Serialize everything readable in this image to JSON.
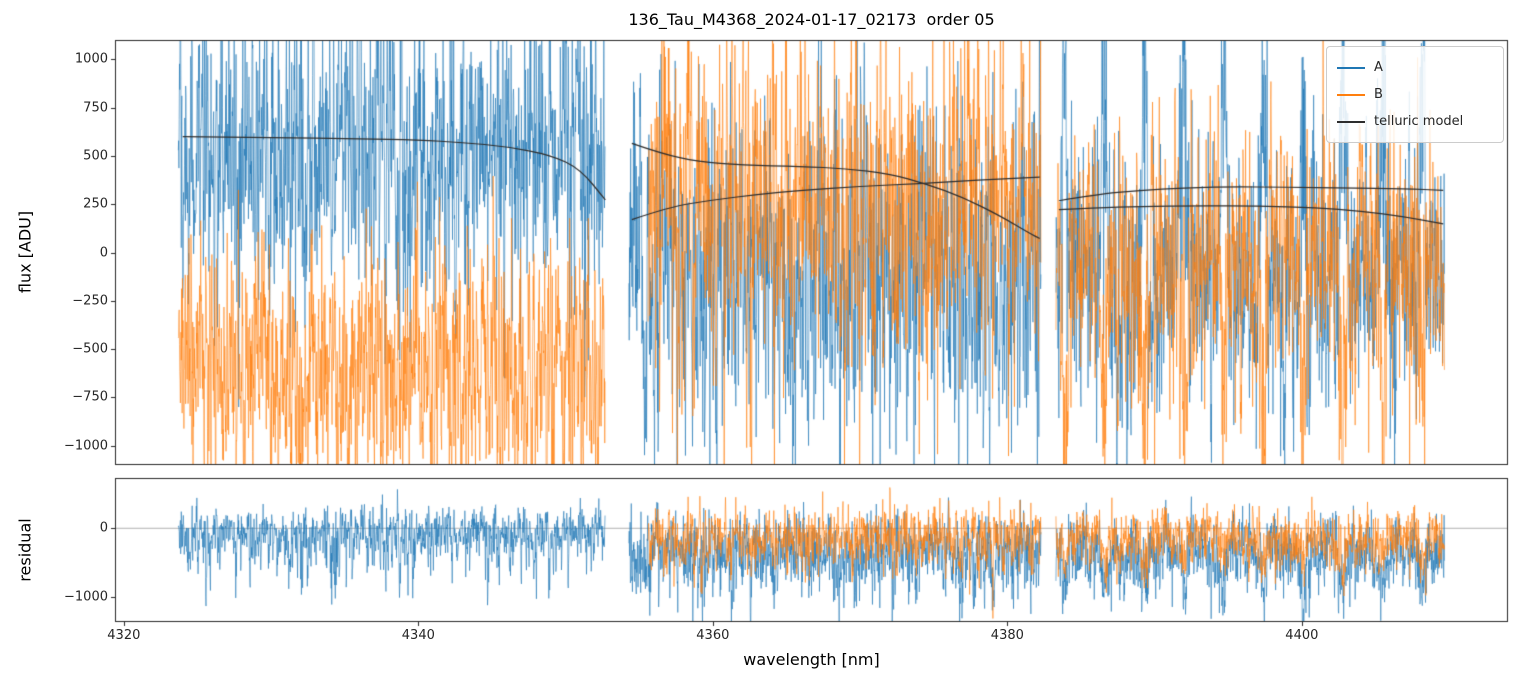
{
  "chart_data": {
    "type": "line",
    "title": "136_Tau_M4368_2024-01-17_02173  order 05",
    "xlabel": "wavelength [nm]",
    "x_axis": {
      "lim": [
        4319.4,
        4414.0
      ],
      "ticks": [
        4320,
        4340,
        4360,
        4380,
        4400
      ],
      "tick_labels": [
        "4320",
        "4340",
        "4360",
        "4380",
        "4400"
      ]
    },
    "panels": {
      "flux": {
        "ylabel": "flux [ADU]",
        "ylim": [
          -1100,
          1100
        ],
        "yticks": [
          1000,
          750,
          500,
          250,
          0,
          -250,
          -500,
          -750,
          -1000
        ],
        "ytick_labels": [
          "1000",
          "750",
          "500",
          "250",
          "0",
          "−250",
          "−500",
          "−750",
          "−1000"
        ]
      },
      "residual": {
        "ylabel": "residual",
        "ylim": [
          -1360,
          730
        ],
        "yticks": [
          0,
          -1000
        ],
        "ytick_labels": [
          "0",
          "−1000"
        ]
      }
    },
    "legend": {
      "position": "upper right",
      "entries": [
        {
          "label": "A",
          "color": "#1f77b4"
        },
        {
          "label": "B",
          "color": "#ff7f0e"
        },
        {
          "label": "telluric model",
          "color": "#2d2d2d"
        }
      ]
    },
    "colors": {
      "series_a": "#1f77b4",
      "series_b": "#ff7f0e",
      "telluric": "#2d2d2d",
      "spine": "#262626",
      "zero_line": "#b0b0b0"
    },
    "segments": [
      {
        "x0": 4323.7,
        "x1": 4352.7
      },
      {
        "x0": 4354.3,
        "x1": 4382.3
      },
      {
        "x0": 4383.3,
        "x1": 4409.7
      }
    ],
    "telluric_model": [
      {
        "segment": 0,
        "points": [
          [
            4324,
            600
          ],
          [
            4330,
            596
          ],
          [
            4336,
            589
          ],
          [
            4340,
            582
          ],
          [
            4343,
            570
          ],
          [
            4346,
            548
          ],
          [
            4349,
            505
          ],
          [
            4351,
            432
          ],
          [
            4352.7,
            272
          ]
        ]
      },
      {
        "segment": 1,
        "points": [
          [
            4354.5,
            565
          ],
          [
            4356.5,
            512
          ],
          [
            4359,
            470
          ],
          [
            4362,
            452
          ],
          [
            4366,
            445
          ],
          [
            4369,
            435
          ],
          [
            4372,
            408
          ],
          [
            4374.5,
            355
          ],
          [
            4377,
            285
          ],
          [
            4379.5,
            190
          ],
          [
            4381.5,
            100
          ],
          [
            4382.2,
            72
          ]
        ]
      },
      {
        "segment": 1,
        "points": [
          [
            4354.5,
            170
          ],
          [
            4357,
            235
          ],
          [
            4360,
            272
          ],
          [
            4363,
            300
          ],
          [
            4366,
            322
          ],
          [
            4370,
            342
          ],
          [
            4374,
            357
          ],
          [
            4378,
            375
          ],
          [
            4382.2,
            390
          ]
        ]
      },
      {
        "segment": 2,
        "points": [
          [
            4383.5,
            268
          ],
          [
            4386,
            300
          ],
          [
            4389,
            322
          ],
          [
            4392,
            335
          ],
          [
            4395,
            340
          ],
          [
            4399,
            338
          ],
          [
            4403,
            333
          ],
          [
            4407,
            330
          ],
          [
            4409.6,
            322
          ]
        ]
      },
      {
        "segment": 2,
        "points": [
          [
            4383.5,
            222
          ],
          [
            4386,
            232
          ],
          [
            4389,
            238
          ],
          [
            4393,
            242
          ],
          [
            4397,
            240
          ],
          [
            4401,
            232
          ],
          [
            4404,
            215
          ],
          [
            4407,
            185
          ],
          [
            4409.6,
            148
          ]
        ]
      }
    ],
    "series_profiles": {
      "flux": [
        {
          "segment": 0,
          "series": "A",
          "mean": 450,
          "sigma": 300,
          "phi": 0.4,
          "spike_up": {
            "p": 0.05,
            "amp": 650
          },
          "spike_down": {
            "p": 0.035,
            "amp": 520
          }
        },
        {
          "segment": 0,
          "series": "B",
          "mean": -600,
          "sigma": 270,
          "phi": 0.4,
          "spike_up": {
            "p": 0.03,
            "amp": 350
          },
          "spike_down": {
            "p": 0.045,
            "amp": 430
          }
        },
        {
          "segment": 1,
          "series": "A",
          "mean": -120,
          "sigma": 340,
          "phi": 0.35,
          "spike_up": {
            "p": 0.04,
            "amp": 820
          },
          "spike_down": {
            "p": 0.05,
            "amp": 650
          }
        },
        {
          "segment": 1,
          "series": "B",
          "mean": 280,
          "sigma": 320,
          "phi": 0.35,
          "x_start_offset": 1.3,
          "spike_up": {
            "p": 0.045,
            "amp": 650
          },
          "spike_down": {
            "p": 0.045,
            "amp": 760
          }
        },
        {
          "segment": 2,
          "series": "A",
          "mean": -150,
          "sigma": 290,
          "phi": 0.35,
          "periodic": {
            "period": 2.7,
            "phase": 0.6,
            "width": 0.22,
            "amp": 1200
          },
          "spike_up": {
            "p": 0.02,
            "amp": 420
          },
          "spike_down": {
            "p": 0.03,
            "amp": 520
          }
        },
        {
          "segment": 2,
          "series": "B",
          "mean": -20,
          "sigma": 270,
          "phi": 0.35,
          "periodic": {
            "period": 2.7,
            "phase": 0.6,
            "width": 0.22,
            "amp": -1050
          },
          "spike_up": {
            "p": 0.03,
            "amp": 500
          },
          "spike_down": {
            "p": 0.03,
            "amp": 460
          }
        }
      ],
      "residual": [
        {
          "segment": 0,
          "series": "A",
          "mean": -80,
          "sigma": 170,
          "phi": 0.3,
          "spike_up": {
            "p": 0.02,
            "amp": 220
          },
          "spike_down": {
            "p": 0.05,
            "amp": 620
          }
        },
        {
          "segment": 1,
          "series": "A",
          "mean": -320,
          "sigma": 260,
          "phi": 0.3,
          "spike_up": {
            "p": 0.02,
            "amp": 260
          },
          "spike_down": {
            "p": 0.05,
            "amp": 560
          }
        },
        {
          "segment": 1,
          "series": "B",
          "mean": -140,
          "sigma": 190,
          "phi": 0.3,
          "x_start_offset": 1.3,
          "spike_up": {
            "p": 0.02,
            "amp": 210
          },
          "spike_down": {
            "p": 0.04,
            "amp": 390
          }
        },
        {
          "segment": 2,
          "series": "A",
          "mean": -330,
          "sigma": 250,
          "phi": 0.3,
          "periodic": {
            "period": 2.7,
            "phase": 0.6,
            "width": 0.22,
            "amp": -660
          },
          "spike_down": {
            "p": 0.03,
            "amp": 460
          }
        },
        {
          "segment": 2,
          "series": "B",
          "mean": -140,
          "sigma": 190,
          "phi": 0.3,
          "periodic": {
            "period": 2.7,
            "phase": 0.6,
            "width": 0.22,
            "amp": -360
          },
          "spike_down": {
            "p": 0.03,
            "amp": 310
          }
        }
      ]
    },
    "noise_seed": 20240117
  }
}
